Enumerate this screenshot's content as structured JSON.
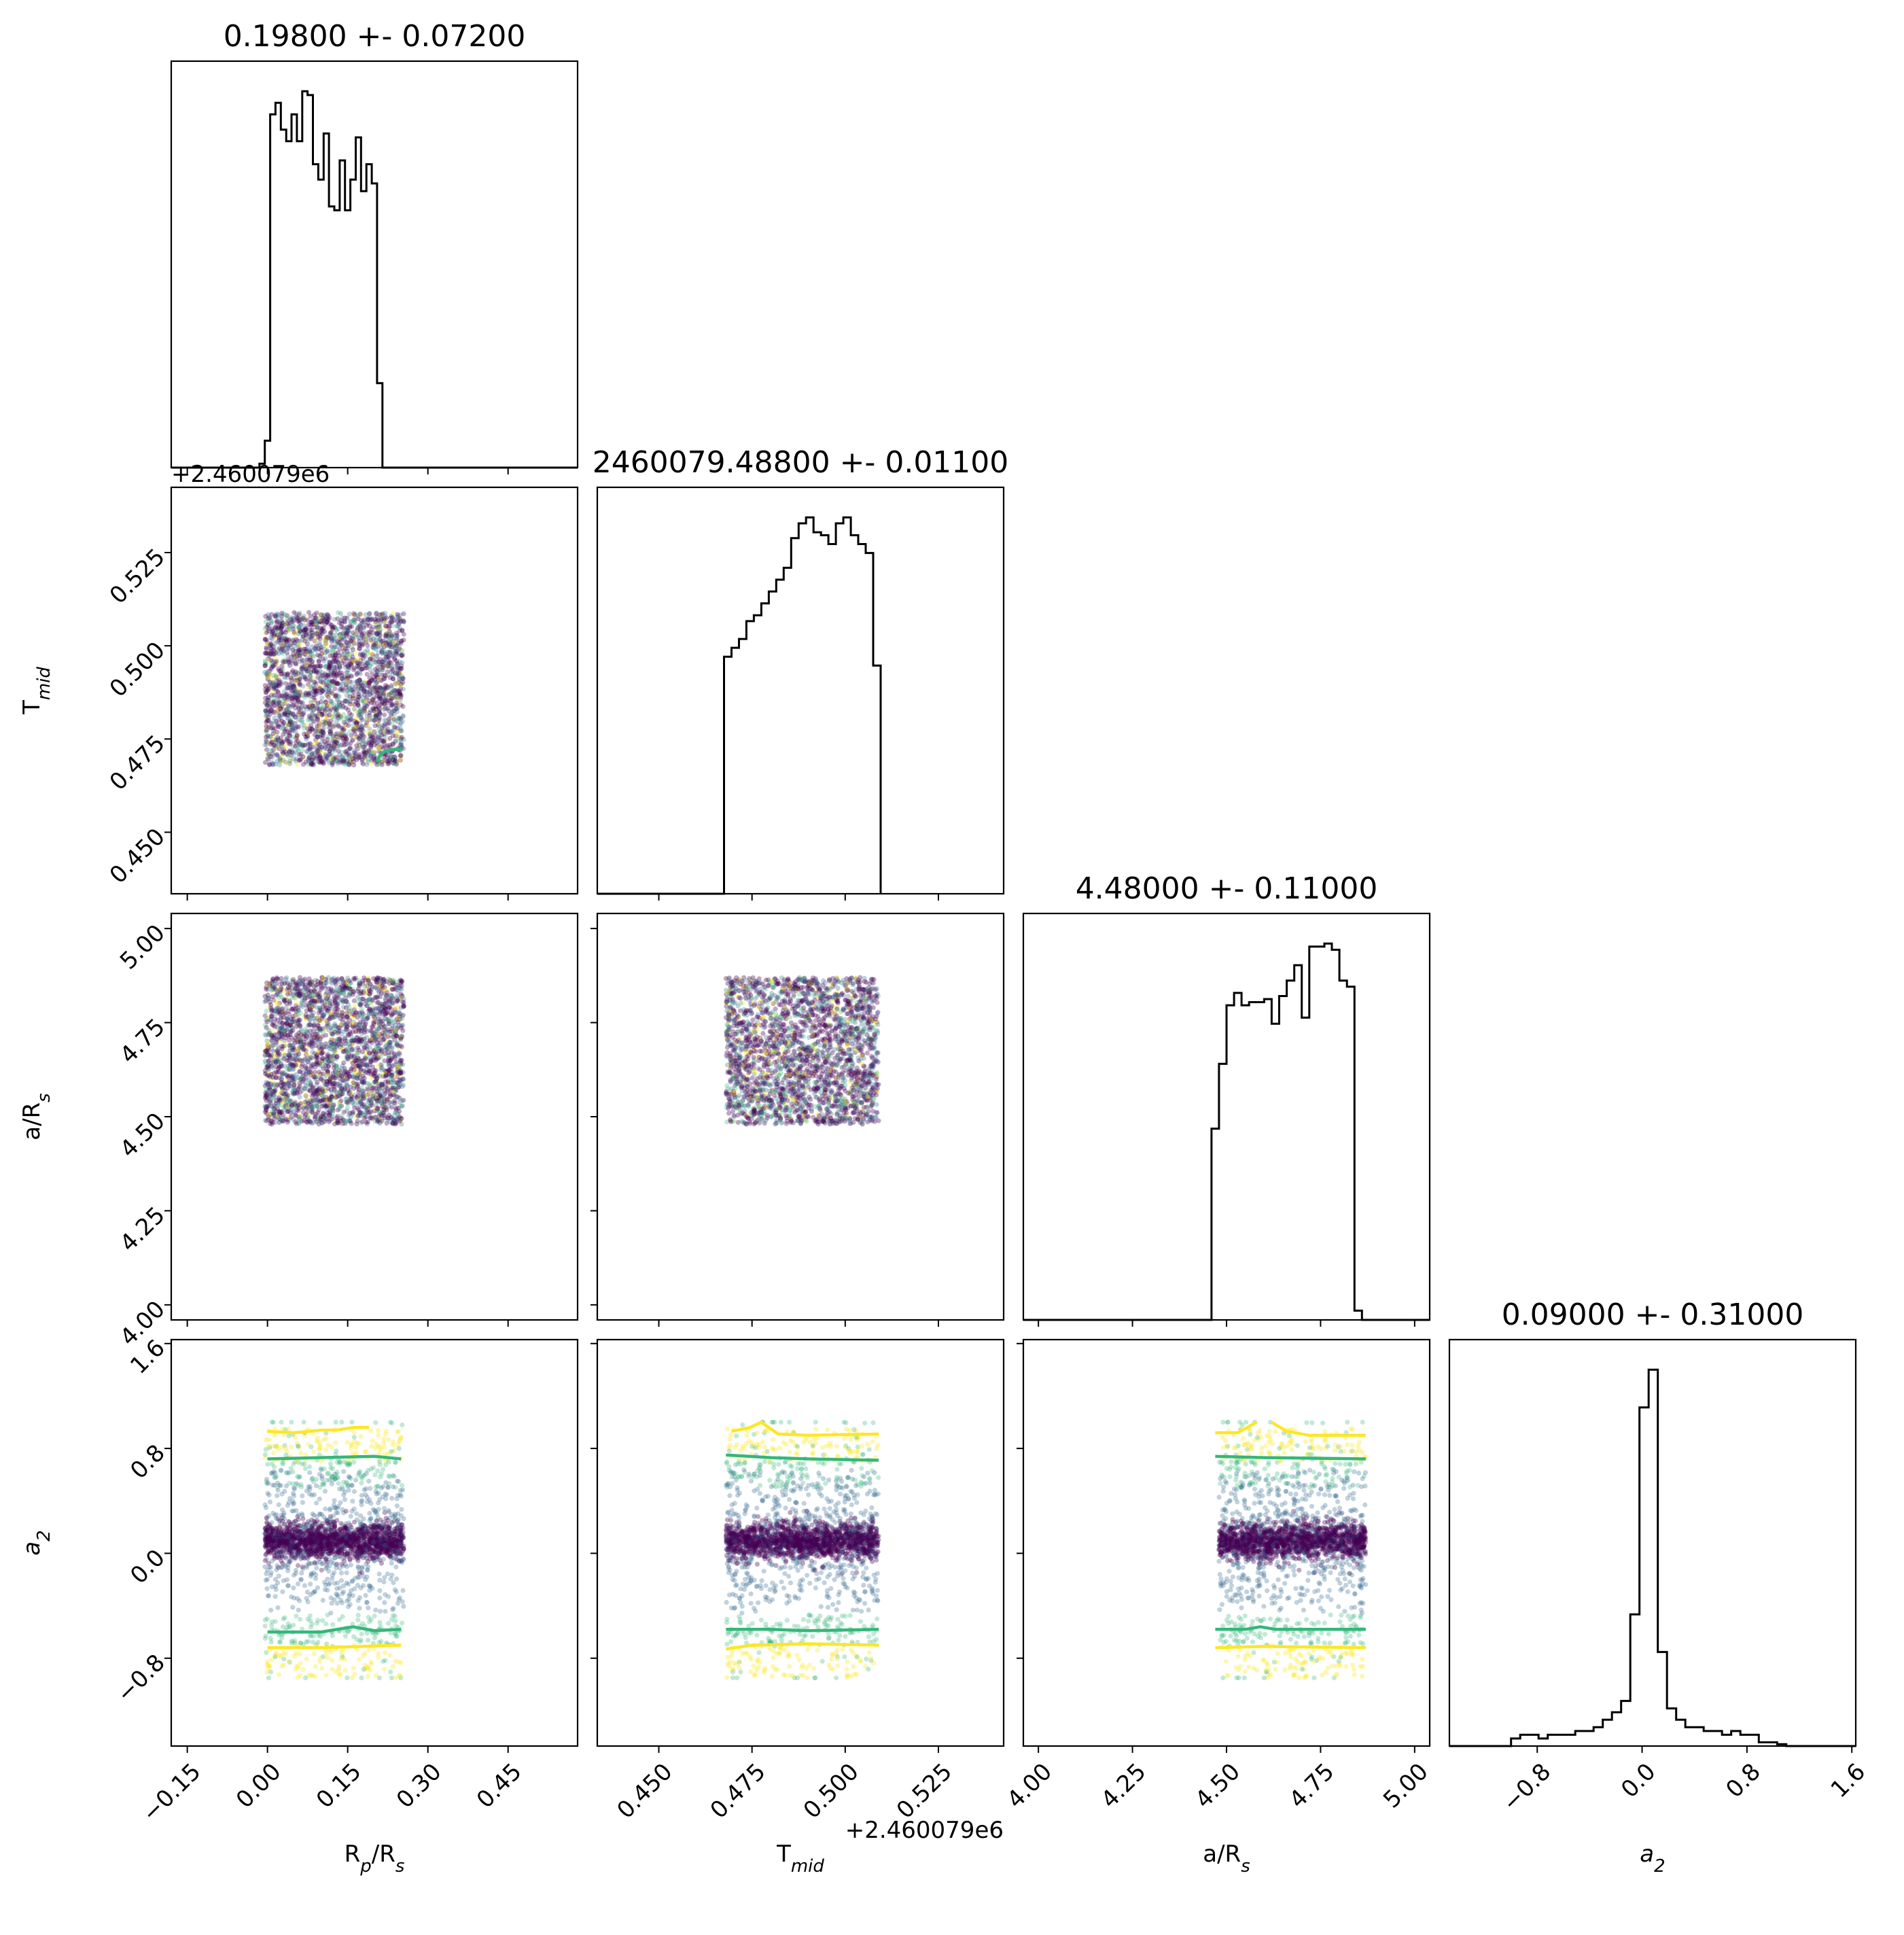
{
  "chart_data": {
    "type": "corner",
    "grid": false,
    "parameters": [
      {
        "label": "R_p/R_s",
        "label_base": "R",
        "label_sub": "p",
        "label_rest": "/R",
        "label_sub2": "s",
        "title": "0.19800 +- 0.07200",
        "range": [
          -0.18,
          0.58
        ],
        "ticks": [
          -0.15,
          0.0,
          0.15,
          0.3,
          0.45
        ],
        "tick_labels": [
          "−0.15",
          "0.00",
          "0.15",
          "0.30",
          "0.45"
        ],
        "hist": {
          "edges": [
            -0.015,
            -0.005,
            0.005,
            0.015,
            0.025,
            0.035,
            0.045,
            0.055,
            0.065,
            0.075,
            0.085,
            0.095,
            0.105,
            0.115,
            0.125,
            0.135,
            0.145,
            0.155,
            0.165,
            0.175,
            0.185,
            0.195,
            0.205,
            0.215,
            0.225,
            0.235,
            0.245,
            0.255,
            0.265
          ],
          "values": [
            0.01,
            0.07,
            0.92,
            0.95,
            0.88,
            0.85,
            0.92,
            0.85,
            0.98,
            0.97,
            0.79,
            0.75,
            0.87,
            0.68,
            0.67,
            0.8,
            0.67,
            0.75,
            0.86,
            0.72,
            0.79,
            0.74,
            0.22,
            0,
            0,
            0,
            0,
            0
          ]
        }
      },
      {
        "label": "T_mid",
        "label_base": "T",
        "label_sub": "mid",
        "title": "2460079.48800 +- 0.01100",
        "offset_label": "+2.460079e6",
        "range": [
          0.4335,
          0.5425
        ],
        "ticks": [
          0.45,
          0.475,
          0.5,
          0.525
        ],
        "tick_labels": [
          "0.450",
          "0.475",
          "0.500",
          "0.525"
        ],
        "hist": {
          "edges": [
            0.4675,
            0.4695,
            0.4715,
            0.4735,
            0.4755,
            0.4775,
            0.4795,
            0.4815,
            0.4835,
            0.4855,
            0.4875,
            0.4895,
            0.4915,
            0.4935,
            0.4955,
            0.4975,
            0.4995,
            0.5015,
            0.5035,
            0.5055,
            0.5075,
            0.5095
          ],
          "values": [
            0.8,
            0.83,
            0.86,
            0.92,
            0.94,
            0.98,
            1.02,
            1.06,
            1.1,
            1.2,
            1.25,
            1.27,
            1.22,
            1.21,
            1.18,
            1.25,
            1.27,
            1.21,
            1.18,
            1.15,
            0.77,
            0
          ]
        }
      },
      {
        "label": "a/R_s",
        "label_base": "a/R",
        "label_sub": "s",
        "title": "4.48000 +- 0.11000",
        "range": [
          3.96,
          5.04
        ],
        "ticks": [
          4.0,
          4.25,
          4.5,
          4.75,
          5.0
        ],
        "tick_labels": [
          "4.00",
          "4.25",
          "4.50",
          "4.75",
          "5.00"
        ],
        "hist": {
          "edges": [
            4.46,
            4.48,
            4.5,
            4.52,
            4.54,
            4.56,
            4.58,
            4.6,
            4.62,
            4.64,
            4.66,
            4.68,
            4.7,
            4.72,
            4.74,
            4.76,
            4.78,
            4.8,
            4.82,
            4.84,
            4.86,
            4.88,
            4.9
          ],
          "values": [
            0.62,
            0.83,
            1.02,
            1.06,
            1.02,
            1.03,
            1.03,
            1.04,
            0.96,
            1.05,
            1.1,
            1.15,
            0.98,
            1.21,
            1.21,
            1.22,
            1.2,
            1.1,
            1.08,
            0.03,
            0,
            0
          ]
        }
      },
      {
        "label": "a_2",
        "label_base": "a",
        "label_sub": "2",
        "title": "0.09000 +- 0.31000",
        "range": [
          -1.47,
          1.63
        ],
        "ticks": [
          -0.8,
          0.0,
          0.8,
          1.6
        ],
        "tick_labels": [
          "−0.8",
          "0.0",
          "0.8",
          "1.6"
        ],
        "hist": {
          "edges": [
            -1.0,
            -0.93,
            -0.86,
            -0.79,
            -0.72,
            -0.65,
            -0.58,
            -0.51,
            -0.44,
            -0.37,
            -0.3,
            -0.23,
            -0.16,
            -0.09,
            -0.02,
            0.05,
            0.12,
            0.19,
            0.26,
            0.33,
            0.4,
            0.47,
            0.54,
            0.61,
            0.68,
            0.75,
            0.82,
            0.89,
            0.96,
            1.03,
            1.1
          ],
          "values": [
            0.02,
            0.03,
            0.03,
            0.02,
            0.03,
            0.03,
            0.03,
            0.04,
            0.04,
            0.05,
            0.07,
            0.09,
            0.12,
            0.35,
            0.9,
            1.0,
            0.25,
            0.1,
            0.07,
            0.05,
            0.05,
            0.04,
            0.04,
            0.03,
            0.04,
            0.03,
            0.03,
            0.01,
            0.01,
            0.005
          ]
        }
      }
    ],
    "samples": {
      "uniform_ranges": {
        "R_p/R_s": [
          -0.005,
          0.255
        ],
        "T_mid": [
          0.468,
          0.509
        ],
        "a/R_s": [
          4.48,
          4.87
        ],
        "a_2": [
          -0.95,
          1.0
        ]
      },
      "colormap": [
        "#440154",
        "#31688e",
        "#35b779",
        "#fde725"
      ]
    },
    "contours": {
      "T_mid_vs_R_p/R_s": [
        {
          "color": "#35b779",
          "points": [
            [
              0.205,
              0.469
            ],
            [
              0.21,
              0.4705
            ],
            [
              0.22,
              0.4718
            ],
            [
              0.235,
              0.4722
            ],
            [
              0.25,
              0.4722
            ]
          ]
        }
      ],
      "a_2_vs_R_p/R_s": [
        {
          "color": "#fde725",
          "points": [
            [
              0.0,
              0.93
            ],
            [
              0.05,
              0.92
            ],
            [
              0.1,
              0.94
            ],
            [
              0.13,
              0.94
            ],
            [
              0.16,
              0.96
            ],
            [
              0.19,
              0.96
            ]
          ]
        },
        {
          "color": "#35b779",
          "points": [
            [
              0.0,
              0.72
            ],
            [
              0.1,
              0.73
            ],
            [
              0.2,
              0.74
            ],
            [
              0.25,
              0.72
            ]
          ]
        },
        {
          "color": "#35b779",
          "points": [
            [
              0.0,
              -0.6
            ],
            [
              0.1,
              -0.6
            ],
            [
              0.16,
              -0.56
            ],
            [
              0.2,
              -0.59
            ],
            [
              0.25,
              -0.58
            ]
          ]
        },
        {
          "color": "#fde725",
          "points": [
            [
              0.0,
              -0.72
            ],
            [
              0.1,
              -0.72
            ],
            [
              0.25,
              -0.7
            ]
          ]
        }
      ],
      "a_2_vs_T_mid": [
        {
          "color": "#fde725",
          "points": [
            [
              0.4695,
              0.93
            ],
            [
              0.4745,
              0.96
            ],
            [
              0.4775,
              1.0
            ],
            [
              0.482,
              0.91
            ],
            [
              0.49,
              0.9
            ],
            [
              0.509,
              0.91
            ]
          ]
        },
        {
          "color": "#35b779",
          "points": [
            [
              0.468,
              0.75
            ],
            [
              0.48,
              0.73
            ],
            [
              0.49,
              0.72
            ],
            [
              0.509,
              0.71
            ]
          ]
        },
        {
          "color": "#35b779",
          "points": [
            [
              0.468,
              -0.58
            ],
            [
              0.48,
              -0.58
            ],
            [
              0.49,
              -0.59
            ],
            [
              0.509,
              -0.58
            ]
          ]
        },
        {
          "color": "#fde725",
          "points": [
            [
              0.468,
              -0.73
            ],
            [
              0.475,
              -0.7
            ],
            [
              0.49,
              -0.69
            ],
            [
              0.509,
              -0.7
            ]
          ]
        }
      ],
      "a_2_vs_a/R_s": [
        {
          "color": "#fde725",
          "points": [
            [
              4.47,
              0.92
            ],
            [
              4.53,
              0.92
            ],
            [
              4.58,
              1.0
            ]
          ]
        },
        {
          "color": "#fde725",
          "points": [
            [
              4.62,
              1.0
            ],
            [
              4.66,
              0.93
            ],
            [
              4.72,
              0.9
            ],
            [
              4.87,
              0.9
            ]
          ]
        },
        {
          "color": "#35b779",
          "points": [
            [
              4.47,
              0.74
            ],
            [
              4.6,
              0.73
            ],
            [
              4.87,
              0.72
            ]
          ]
        },
        {
          "color": "#35b779",
          "points": [
            [
              4.47,
              -0.58
            ],
            [
              4.55,
              -0.58
            ],
            [
              4.59,
              -0.56
            ],
            [
              4.63,
              -0.58
            ],
            [
              4.87,
              -0.58
            ]
          ]
        },
        {
          "color": "#fde725",
          "points": [
            [
              4.47,
              -0.72
            ],
            [
              4.6,
              -0.71
            ],
            [
              4.87,
              -0.72
            ]
          ]
        }
      ]
    }
  }
}
